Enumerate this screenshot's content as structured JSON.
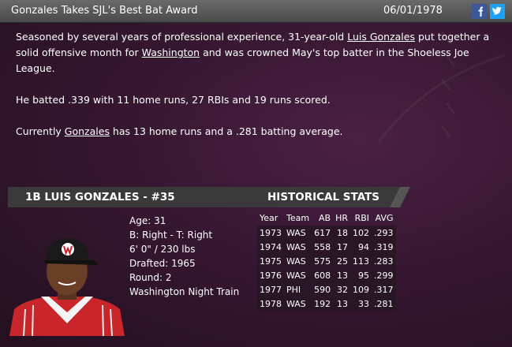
{
  "header": {
    "title": "Gonzales Takes SJL's Best Bat Award",
    "date": "06/01/1978"
  },
  "article": {
    "paragraphs": [
      [
        "Seasoned by several years of professional experience, 31-year-old ",
        "Luis Gonzales",
        " put together a solid offensive month for ",
        "Washington",
        " and was crowned May's top batter in the Shoeless Joe League."
      ],
      [
        "He batted .339 with 11 home runs, 27 RBIs and 19 runs scored."
      ],
      [
        "Currently ",
        "Gonzales",
        " has 13 home runs and a .281 batting average."
      ]
    ]
  },
  "player": {
    "title": "1B LUIS GONZALES - #35",
    "bio": [
      "Age: 31",
      "B: Right - T: Right",
      "6' 0\" / 230 lbs",
      "Drafted: 1965",
      "Round: 2",
      "Washington Night Train"
    ]
  },
  "stats": {
    "title": "HISTORICAL STATS",
    "columns": [
      "Year",
      "Team",
      "AB",
      "HR",
      "RBI",
      "AVG"
    ],
    "rows": [
      [
        1973,
        "WAS",
        617,
        18,
        102,
        ".293"
      ],
      [
        1974,
        "WAS",
        558,
        17,
        94,
        ".319"
      ],
      [
        1975,
        "WAS",
        575,
        25,
        113,
        ".283"
      ],
      [
        1976,
        "WAS",
        608,
        13,
        95,
        ".299"
      ],
      [
        1977,
        "PHI",
        590,
        32,
        109,
        ".317"
      ],
      [
        1978,
        "WAS",
        192,
        13,
        33,
        ".281"
      ]
    ]
  }
}
